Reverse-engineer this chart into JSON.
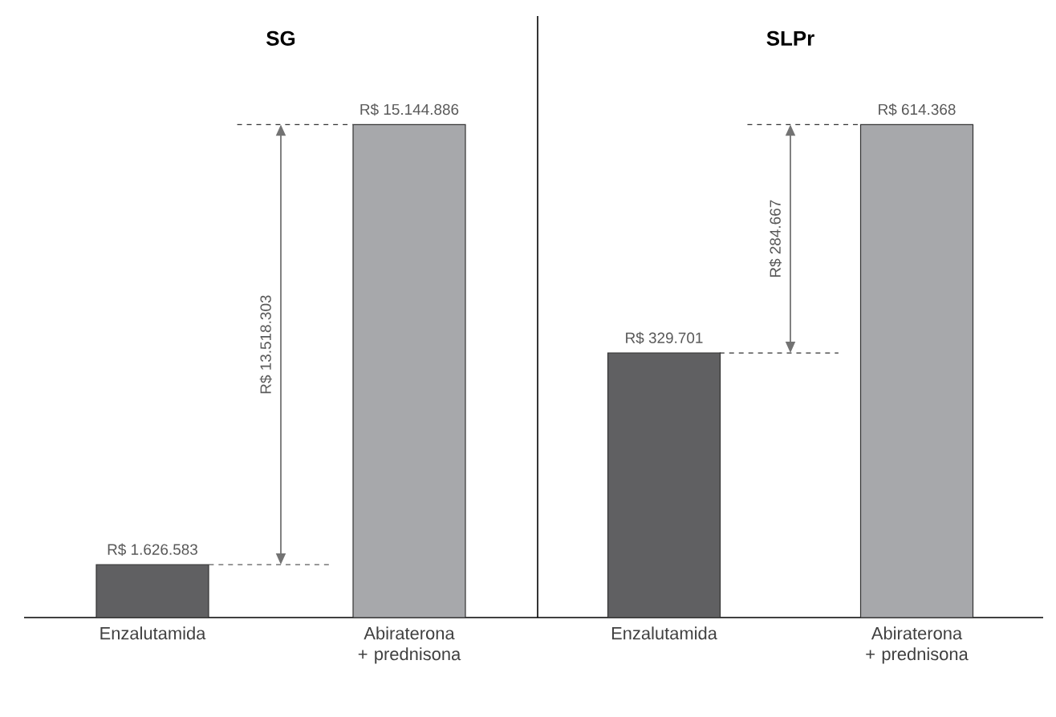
{
  "chart_data": [
    {
      "type": "bar",
      "title": "SG",
      "categories": [
        "Enzalutamida",
        "Abiraterona + prednisona"
      ],
      "values": [
        1626583,
        15144886
      ],
      "colors": [
        "#606062",
        "#a7a8ab"
      ],
      "value_labels": [
        "R$ 1.626.583",
        "R$ 15.144.886"
      ],
      "tick_labels": "x",
      "annotations": [
        "R$ 13.518.303"
      ]
    },
    {
      "type": "bar",
      "title": "SLPr",
      "categories": [
        "Enzalutamida",
        "Abiraterona + prednisona"
      ],
      "values": [
        329701,
        614368
      ],
      "colors": [
        "#606062",
        "#a7a8ab"
      ],
      "value_labels": [
        "R$ 329.701",
        "R$ 614.368"
      ],
      "tick_labels": "x",
      "annotations": [
        "R$ 284.667"
      ]
    }
  ]
}
